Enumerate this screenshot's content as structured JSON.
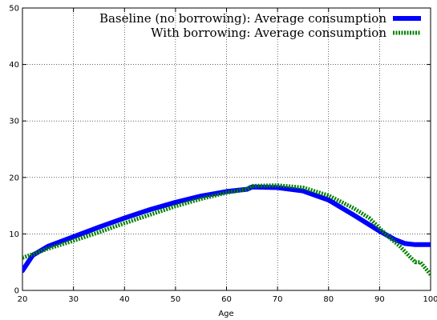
{
  "chart_data": {
    "type": "line",
    "title": "",
    "xlabel": "Age",
    "ylabel": "",
    "xlim": [
      20,
      100
    ],
    "ylim": [
      0,
      50
    ],
    "xticks": [
      "20",
      "30",
      "40",
      "50",
      "60",
      "70",
      "80",
      "90",
      "100"
    ],
    "yticks": [
      "0",
      "10",
      "20",
      "30",
      "40",
      "50"
    ],
    "grid": true,
    "legend_position": "top-right",
    "series": [
      {
        "name": "Baseline (no borrowing): Average consumption",
        "color": "#0000ff",
        "style": "solid",
        "x": [
          20,
          22,
          25,
          30,
          35,
          40,
          45,
          50,
          55,
          60,
          64,
          65,
          70,
          75,
          80,
          85,
          90,
          93,
          95,
          97,
          100
        ],
        "y": [
          3.5,
          6.2,
          7.8,
          9.5,
          11.2,
          12.8,
          14.3,
          15.6,
          16.7,
          17.5,
          17.9,
          18.3,
          18.2,
          17.6,
          16.0,
          13.3,
          10.5,
          9.0,
          8.3,
          8.1,
          8.1
        ]
      },
      {
        "name": "With borrowing: Average consumption",
        "color": "#008000",
        "style": "dotted",
        "x": [
          20,
          22,
          25,
          30,
          35,
          40,
          45,
          50,
          55,
          60,
          64,
          65,
          70,
          75,
          80,
          85,
          88,
          90,
          92,
          94,
          96,
          97,
          98,
          100
        ],
        "y": [
          5.8,
          6.4,
          7.4,
          8.8,
          10.3,
          11.9,
          13.4,
          14.9,
          16.2,
          17.3,
          17.9,
          18.5,
          18.6,
          18.2,
          16.8,
          14.5,
          12.8,
          11.0,
          9.3,
          7.8,
          5.9,
          5.0,
          5.0,
          2.8
        ]
      }
    ]
  }
}
